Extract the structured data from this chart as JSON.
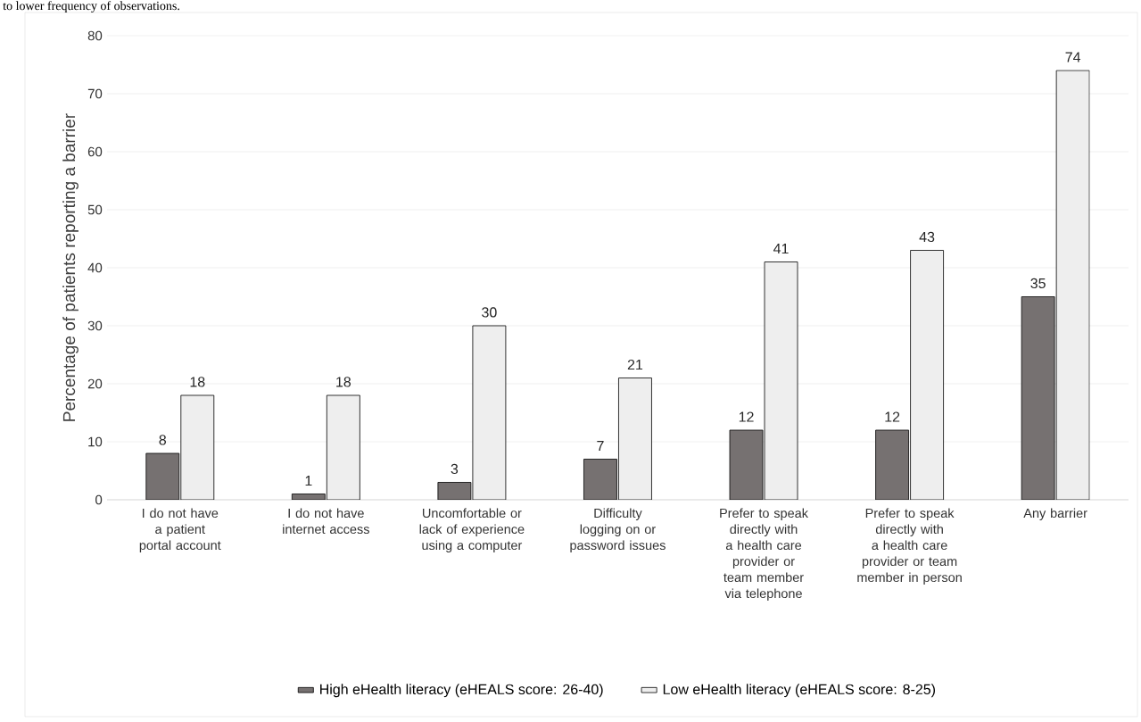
{
  "chart_data": {
    "type": "bar",
    "ylabel": "Percentage of patients reporting a barrier",
    "annotations": [
      "to lower frequency of observations."
    ],
    "categories": [
      "I do not have a patient portal account",
      "I do not have internet access",
      "Uncomfortable or lack of experience using a computer",
      "Difficulty logging on or password issues",
      "Prefer to speak directly with a health care provider or team member via telephone",
      "Prefer to speak directly with a health care provider or team member in person",
      "Any barrier"
    ],
    "series": [
      {
        "name": "High eHealth literacy (eHEALS score: 26-40)",
        "color": "#767171",
        "values": [
          8,
          1,
          3,
          7,
          12,
          12,
          35
        ]
      },
      {
        "name": "Low eHealth literacy (eHEALS score: 8-25)",
        "color": "#eeeeee",
        "values": [
          18,
          18,
          30,
          21,
          41,
          43,
          74
        ]
      }
    ],
    "ylim": [
      0,
      80
    ],
    "yticks": [
      0,
      10,
      20,
      30,
      40,
      50,
      60,
      70,
      80
    ],
    "grid": "y",
    "legend": "bottom",
    "data_labels": true
  }
}
